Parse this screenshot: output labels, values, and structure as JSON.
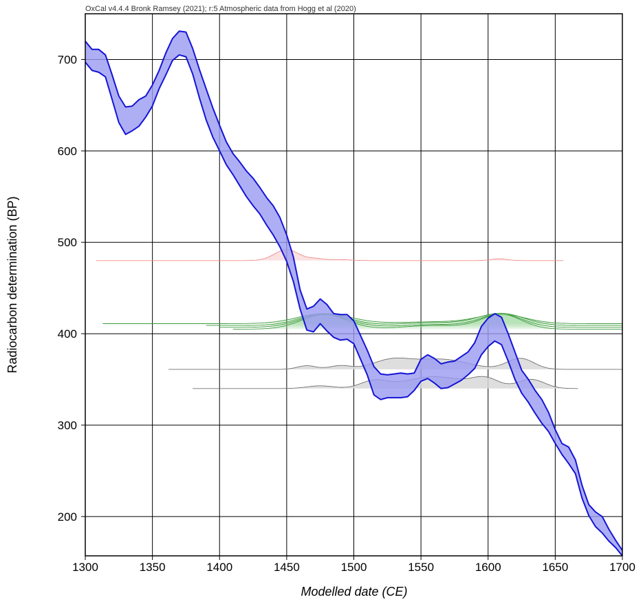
{
  "chart_data": {
    "type": "line",
    "credit": "OxCal v4.4.4 Bronk Ramsey (2021); r:5 Atmospheric data from Hogg et al (2020)",
    "xlabel": "Modelled date (CE)",
    "ylabel": "Radiocarbon determination (BP)",
    "xlim": [
      1300,
      1700
    ],
    "ylim": [
      157,
      750
    ],
    "x_ticks": [
      1300,
      1350,
      1400,
      1450,
      1500,
      1550,
      1600,
      1650,
      1700
    ],
    "y_ticks": [
      200,
      300,
      400,
      500,
      600,
      700
    ],
    "grid": true,
    "colors": {
      "curve_fill": "#9a9af2",
      "curve_line": "#1414d6",
      "red_dist": "#f08a8a",
      "green_dist": "#3a9a3a",
      "gray_dist": "#707070",
      "gray_fill": "#d8d8d8"
    },
    "calibration_curve": {
      "x": [
        1300,
        1305,
        1310,
        1315,
        1320,
        1325,
        1330,
        1335,
        1340,
        1345,
        1350,
        1355,
        1360,
        1365,
        1370,
        1375,
        1380,
        1385,
        1390,
        1395,
        1400,
        1405,
        1410,
        1415,
        1420,
        1425,
        1430,
        1435,
        1440,
        1445,
        1450,
        1455,
        1460,
        1465,
        1470,
        1475,
        1480,
        1485,
        1490,
        1495,
        1500,
        1505,
        1510,
        1515,
        1520,
        1525,
        1530,
        1535,
        1540,
        1545,
        1550,
        1555,
        1560,
        1565,
        1570,
        1575,
        1580,
        1585,
        1590,
        1595,
        1600,
        1605,
        1610,
        1615,
        1620,
        1625,
        1630,
        1635,
        1640,
        1645,
        1650,
        1655,
        1660,
        1665,
        1670,
        1675,
        1680,
        1685,
        1690,
        1695,
        1700
      ],
      "upper": [
        720,
        711,
        711,
        705,
        683,
        660,
        648,
        649,
        656,
        660,
        672,
        688,
        707,
        723,
        731,
        730,
        712,
        689,
        668,
        647,
        628,
        610,
        597,
        588,
        578,
        570,
        560,
        549,
        540,
        527,
        508,
        484,
        448,
        427,
        430,
        438,
        432,
        422,
        421,
        421,
        414,
        398,
        382,
        364,
        356,
        355,
        356,
        357,
        356,
        357,
        372,
        377,
        373,
        367,
        369,
        370,
        375,
        380,
        390,
        408,
        417,
        422,
        418,
        400,
        380,
        360,
        350,
        338,
        328,
        314,
        295,
        280,
        276,
        262,
        234,
        213,
        205,
        200,
        186,
        174,
        163
      ],
      "lower": [
        697,
        688,
        686,
        681,
        656,
        631,
        618,
        622,
        627,
        637,
        649,
        668,
        683,
        699,
        705,
        703,
        684,
        658,
        634,
        615,
        600,
        585,
        574,
        562,
        550,
        540,
        531,
        519,
        508,
        495,
        479,
        457,
        427,
        404,
        402,
        411,
        403,
        396,
        393,
        394,
        389,
        372,
        355,
        333,
        328,
        330,
        330,
        330,
        331,
        338,
        348,
        351,
        346,
        340,
        341,
        345,
        349,
        355,
        362,
        377,
        386,
        392,
        388,
        370,
        350,
        335,
        325,
        313,
        302,
        293,
        280,
        268,
        258,
        247,
        220,
        201,
        189,
        182,
        173,
        166,
        157
      ]
    },
    "distributions": [
      {
        "color": "red",
        "baseline": 480,
        "x_start": 1308,
        "x_end": 1656,
        "peaks": [
          [
            1450,
            12,
            9
          ],
          [
            1472,
            2,
            6
          ],
          [
            1490,
            1,
            8
          ],
          [
            1608,
            2,
            6
          ]
        ]
      },
      {
        "color": "green",
        "baseline": 411,
        "x_start": 1313,
        "x_end": 1700,
        "peaks": [
          [
            1478,
            11,
            20
          ],
          [
            1610,
            10,
            18
          ],
          [
            1560,
            2,
            25
          ]
        ]
      },
      {
        "color": "green",
        "baseline": 409,
        "x_start": 1390,
        "x_end": 1700,
        "peaks": [
          [
            1478,
            13,
            18
          ],
          [
            1610,
            13,
            17
          ],
          [
            1560,
            3,
            25
          ]
        ]
      },
      {
        "color": "green",
        "baseline": 407,
        "x_start": 1400,
        "x_end": 1700,
        "peaks": [
          [
            1478,
            14,
            18
          ],
          [
            1610,
            14,
            16
          ],
          [
            1560,
            3,
            24
          ]
        ]
      },
      {
        "color": "green",
        "baseline": 405,
        "x_start": 1410,
        "x_end": 1700,
        "peaks": [
          [
            1478,
            16,
            17
          ],
          [
            1610,
            16,
            15
          ],
          [
            1560,
            4,
            23
          ]
        ]
      },
      {
        "color": "gray",
        "baseline": 361,
        "x_start": 1362,
        "x_end": 1700,
        "peaks": [
          [
            1465,
            4,
            7
          ],
          [
            1490,
            4,
            8
          ],
          [
            1528,
            10,
            14
          ],
          [
            1565,
            11,
            20
          ],
          [
            1624,
            12,
            10
          ]
        ]
      },
      {
        "color": "gray",
        "baseline": 340,
        "x_start": 1380,
        "x_end": 1667,
        "peaks": [
          [
            1475,
            3,
            10
          ],
          [
            1515,
            8,
            10
          ],
          [
            1560,
            13,
            22
          ],
          [
            1598,
            10,
            10
          ],
          [
            1632,
            10,
            10
          ]
        ]
      }
    ]
  }
}
